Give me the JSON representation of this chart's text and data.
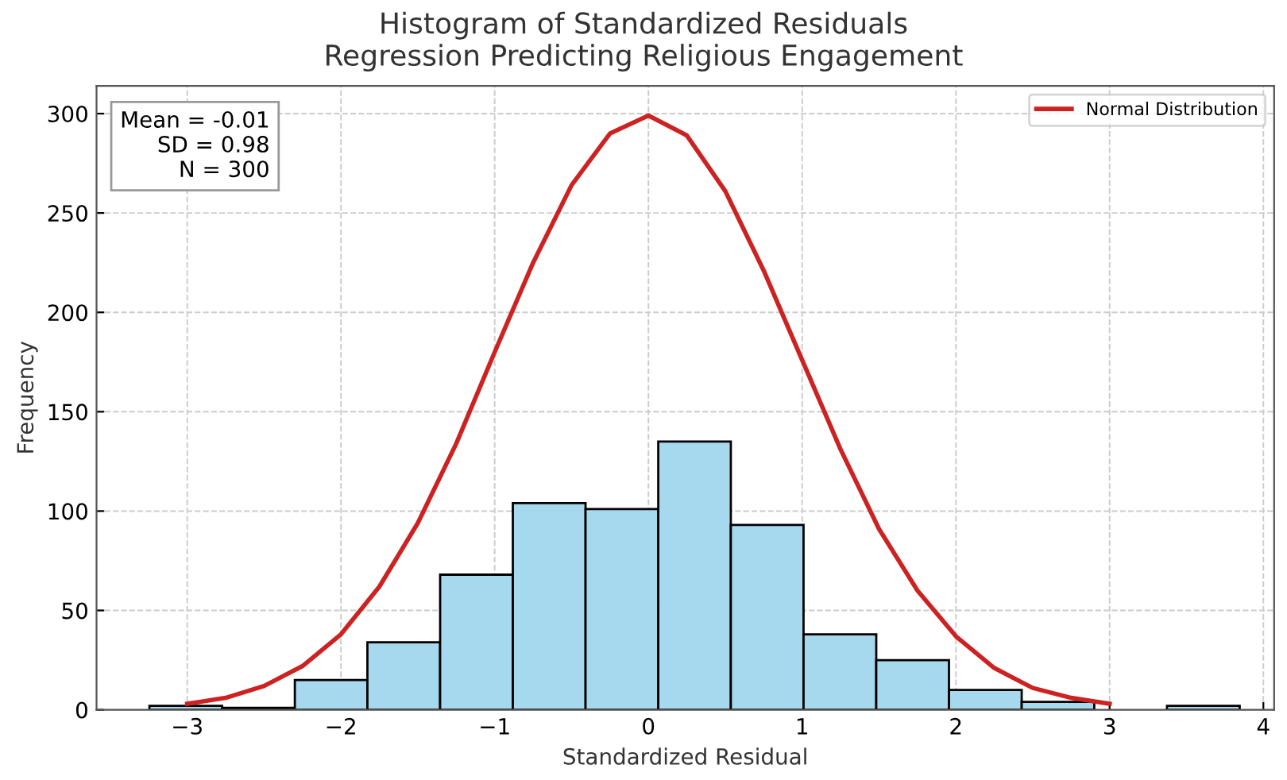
{
  "chart_data": {
    "type": "histogram",
    "title": "Histogram of Standardized Residuals\nRegression Predicting Religious Engagement",
    "xlabel": "Standardized Residual",
    "ylabel": "Frequency",
    "bins": [
      -3.246,
      -2.773,
      -2.3,
      -1.828,
      -1.355,
      -0.882,
      -0.409,
      0.064,
      0.536,
      1.009,
      1.482,
      1.955,
      2.428,
      2.9,
      3.373,
      3.846
    ],
    "values": [
      2,
      1,
      15,
      34,
      68,
      104,
      101,
      135,
      93,
      38,
      25,
      10,
      4,
      0,
      2
    ],
    "color": "#a6d8ee",
    "series": [
      {
        "type": "line",
        "name": "Normal Distribution",
        "color": "#cc2222",
        "x": [
          -3,
          -2.75,
          -2.5,
          -2.25,
          -2,
          -1.75,
          -1.5,
          -1.25,
          -1,
          -0.75,
          -0.5,
          -0.25,
          0,
          0.25,
          0.5,
          0.75,
          1,
          1.25,
          1.5,
          1.75,
          2,
          2.25,
          2.5,
          2.75,
          3
        ],
        "values": [
          3,
          6,
          12,
          22,
          38,
          62,
          94,
          134,
          180,
          225,
          264,
          290,
          299,
          289,
          261,
          221,
          176,
          131,
          91,
          60,
          37,
          21,
          11,
          6,
          3
        ]
      }
    ],
    "annotations": [
      "Mean = -0.01\nSD = 0.98\nN = 300"
    ],
    "xlim": [
      -3.59,
      4.07
    ],
    "xticks": [
      -3,
      -2,
      -1,
      0,
      1,
      2,
      3,
      4
    ],
    "ylim": [
      0,
      314
    ],
    "yticks": [
      0,
      50,
      100,
      150,
      200,
      250,
      300
    ],
    "grid": true,
    "legend": "top right"
  }
}
